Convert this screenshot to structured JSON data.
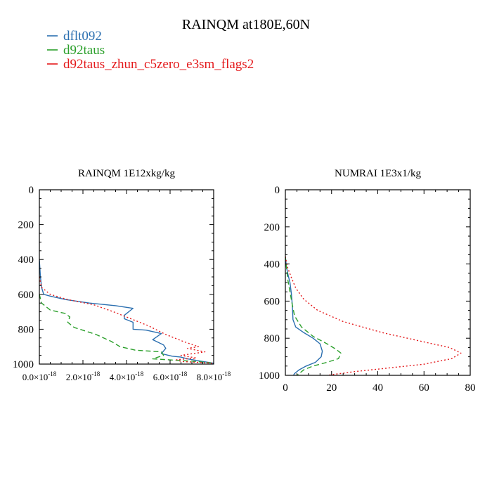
{
  "figure": {
    "title": "RAINQM at180E,60N"
  },
  "legend": {
    "placement": "top-left",
    "entries": [
      {
        "label": "dflt092",
        "color": "#2b6fb0",
        "dash": "solid"
      },
      {
        "label": "d92taus",
        "color": "#2ca02c",
        "dash": "dashed"
      },
      {
        "label": "d92taus_zhun_c5zero_e3sm_flags2",
        "color": "#e41a1c",
        "dash": "dotted"
      }
    ]
  },
  "chart_data": [
    {
      "type": "line",
      "title": "RAINQM  1E12xkg/kg",
      "xlim": [
        0,
        8e-18
      ],
      "ylim": [
        1000,
        0
      ],
      "y_inverted": true,
      "grid": false,
      "xticks": [
        {
          "value": 0,
          "label": "0.0×10",
          "exp": "-18"
        },
        {
          "value": 2e-18,
          "label": "2.0×10",
          "exp": "-18"
        },
        {
          "value": 4e-18,
          "label": "4.0×10",
          "exp": "-18"
        },
        {
          "value": 6e-18,
          "label": "6.0×10",
          "exp": "-18"
        },
        {
          "value": 8e-18,
          "label": "8.0×10",
          "exp": "-18"
        }
      ],
      "yticks": [
        0,
        200,
        400,
        600,
        800,
        1000
      ],
      "series": [
        {
          "name": "dflt092",
          "color": "#2b6fb0",
          "dash": "solid",
          "points": [
            [
              0,
              400
            ],
            [
              5e-20,
              500
            ],
            [
              1e-19,
              560
            ],
            [
              2e-19,
              600
            ],
            [
              5e-19,
              610
            ],
            [
              1.2e-18,
              630
            ],
            [
              2.3e-18,
              650
            ],
            [
              3.5e-18,
              665
            ],
            [
              4.3e-18,
              680
            ],
            [
              3.9e-18,
              720
            ],
            [
              3.9e-18,
              740
            ],
            [
              4.3e-18,
              760
            ],
            [
              4.3e-18,
              800
            ],
            [
              4.9e-18,
              805
            ],
            [
              5.6e-18,
              825
            ],
            [
              5.2e-18,
              860
            ],
            [
              5.7e-18,
              890
            ],
            [
              5.8e-18,
              910
            ],
            [
              5.6e-18,
              940
            ],
            [
              6.1e-18,
              955
            ],
            [
              6.5e-18,
              960
            ],
            [
              6.8e-18,
              970
            ],
            [
              7.5e-18,
              985
            ],
            [
              8e-18,
              995
            ]
          ]
        },
        {
          "name": "d92taus",
          "color": "#2ca02c",
          "dash": "dashed",
          "points": [
            [
              0,
              600
            ],
            [
              1e-19,
              650
            ],
            [
              5e-19,
              690
            ],
            [
              1.2e-18,
              710
            ],
            [
              1.4e-18,
              730
            ],
            [
              1.3e-18,
              760
            ],
            [
              1.6e-18,
              790
            ],
            [
              2.6e-18,
              830
            ],
            [
              3.3e-18,
              870
            ],
            [
              3.7e-18,
              900
            ],
            [
              4.4e-18,
              920
            ],
            [
              5.6e-18,
              930
            ],
            [
              5.7e-18,
              950
            ],
            [
              5.2e-18,
              970
            ],
            [
              7.2e-18,
              985
            ],
            [
              8e-18,
              995
            ]
          ]
        },
        {
          "name": "d92taus_zhun_c5zero_e3sm_flags2",
          "color": "#e41a1c",
          "dash": "dotted",
          "points": [
            [
              0,
              500
            ],
            [
              1e-19,
              560
            ],
            [
              5e-19,
              600
            ],
            [
              1.3e-18,
              630
            ],
            [
              2.5e-18,
              660
            ],
            [
              3.4e-18,
              700
            ],
            [
              4.2e-18,
              740
            ],
            [
              5e-18,
              780
            ],
            [
              5.8e-18,
              830
            ],
            [
              6.6e-18,
              870
            ],
            [
              7.3e-18,
              900
            ],
            [
              6.8e-18,
              910
            ],
            [
              7.6e-18,
              930
            ],
            [
              6.5e-18,
              950
            ],
            [
              7.2e-18,
              965
            ],
            [
              6.3e-18,
              975
            ],
            [
              6.5e-18,
              985
            ],
            [
              8e-18,
              995
            ]
          ]
        }
      ]
    },
    {
      "type": "line",
      "title": "NUMRAI  1E3x1/kg",
      "xlim": [
        0,
        80
      ],
      "ylim": [
        1000,
        0
      ],
      "y_inverted": true,
      "grid": false,
      "xticks": [
        {
          "value": 0,
          "label": "0"
        },
        {
          "value": 20,
          "label": "20"
        },
        {
          "value": 40,
          "label": "40"
        },
        {
          "value": 60,
          "label": "60"
        },
        {
          "value": 80,
          "label": "80"
        }
      ],
      "yticks": [
        0,
        200,
        400,
        600,
        800,
        1000
      ],
      "series": [
        {
          "name": "dflt092",
          "color": "#2b6fb0",
          "dash": "solid",
          "points": [
            [
              0,
              360
            ],
            [
              0.5,
              420
            ],
            [
              1.2,
              460
            ],
            [
              2,
              500
            ],
            [
              2.6,
              560
            ],
            [
              3,
              620
            ],
            [
              3.3,
              700
            ],
            [
              4.5,
              740
            ],
            [
              8,
              770
            ],
            [
              12,
              800
            ],
            [
              15,
              830
            ],
            [
              16,
              870
            ],
            [
              15.5,
              900
            ],
            [
              13,
              930
            ],
            [
              9,
              950
            ],
            [
              6,
              970
            ],
            [
              4,
              990
            ],
            [
              3.5,
              1000
            ]
          ]
        },
        {
          "name": "d92taus",
          "color": "#2ca02c",
          "dash": "dashed",
          "points": [
            [
              0,
              360
            ],
            [
              0.5,
              420
            ],
            [
              1,
              480
            ],
            [
              2,
              550
            ],
            [
              3,
              620
            ],
            [
              4,
              680
            ],
            [
              7,
              740
            ],
            [
              12,
              790
            ],
            [
              18,
              830
            ],
            [
              22,
              860
            ],
            [
              24,
              880
            ],
            [
              23,
              910
            ],
            [
              18,
              930
            ],
            [
              12,
              950
            ],
            [
              8,
              970
            ],
            [
              5,
              1000
            ]
          ]
        },
        {
          "name": "d92taus_zhun_c5zero_e3sm_flags2",
          "color": "#e41a1c",
          "dash": "dotted",
          "points": [
            [
              0,
              360
            ],
            [
              1,
              420
            ],
            [
              2.5,
              470
            ],
            [
              4.5,
              530
            ],
            [
              8,
              590
            ],
            [
              14,
              650
            ],
            [
              25,
              710
            ],
            [
              42,
              770
            ],
            [
              60,
              820
            ],
            [
              71,
              850
            ],
            [
              76,
              880
            ],
            [
              72,
              910
            ],
            [
              60,
              940
            ],
            [
              45,
              960
            ],
            [
              30,
              980
            ],
            [
              18,
              1000
            ]
          ]
        }
      ]
    }
  ]
}
